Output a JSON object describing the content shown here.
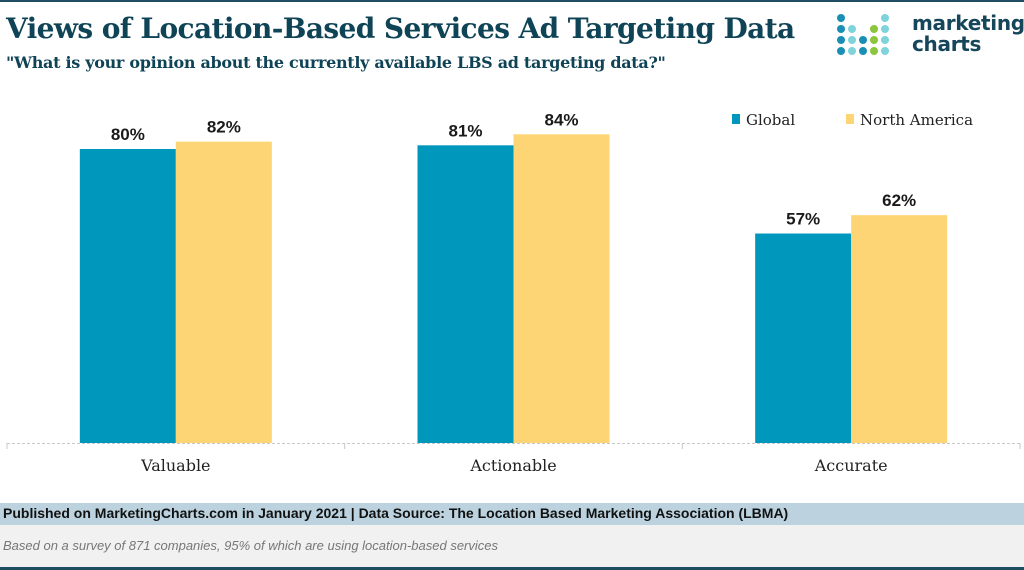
{
  "header": {
    "title": "Views of Location-Based Services Ad Targeting Data",
    "subtitle": "\"What is your opinion about the currently available LBS ad targeting data?\""
  },
  "logo": {
    "line1": "marketing",
    "line2": "charts",
    "icon": "dot-matrix-logo-icon",
    "colors": {
      "dark": "#1a8fb5",
      "light": "#7fd3db",
      "green": "#8cc63f"
    }
  },
  "colors": {
    "global": "#0097bd",
    "north_america": "#fdd574",
    "axis": "#c8c8c8",
    "title": "#0f4356"
  },
  "chart_data": {
    "type": "bar",
    "title": "Views of Location-Based Services Ad Targeting Data",
    "subtitle": "\"What is your opinion about the currently available LBS ad targeting data?\"",
    "categories": [
      "Valuable",
      "Actionable",
      "Accurate"
    ],
    "series": [
      {
        "name": "Global",
        "values": [
          80,
          81,
          57
        ],
        "labels": [
          "80%",
          "81%",
          "57%"
        ]
      },
      {
        "name": "North America",
        "values": [
          82,
          84,
          62
        ],
        "labels": [
          "82%",
          "84%",
          "62%"
        ]
      }
    ],
    "xlabel": "",
    "ylabel": "",
    "ylim": [
      0,
      100
    ],
    "unit": "%",
    "grid": false,
    "legend": {
      "position": "top-right",
      "entries": [
        "Global",
        "North America"
      ]
    }
  },
  "footer": {
    "source": "Published on MarketingCharts.com in January 2021 | Data Source: The Location Based Marketing Association (LBMA)",
    "note": "Based on a survey of 871 companies, 95% of which are using location-based services"
  }
}
